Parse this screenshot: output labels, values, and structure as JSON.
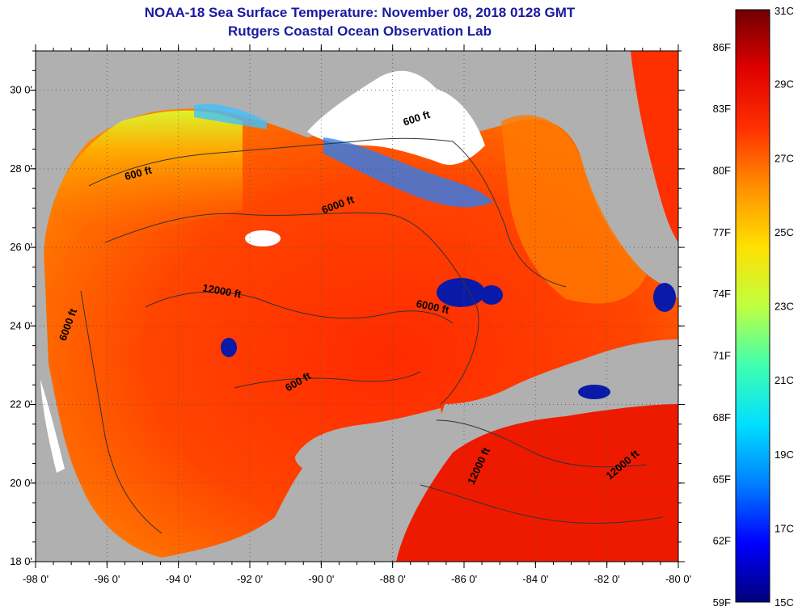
{
  "title": "NOAA-18 Sea Surface Temperature:  November 08, 2018 0128 GMT",
  "subtitle": "Rutgers Coastal Ocean Observation Lab",
  "map": {
    "lon_range": [
      -98,
      -80
    ],
    "lat_range": [
      18,
      31
    ],
    "x_ticks": [
      {
        "value": -98,
        "label": "-98 0'"
      },
      {
        "value": -96,
        "label": "-96 0'"
      },
      {
        "value": -94,
        "label": "-94 0'"
      },
      {
        "value": -92,
        "label": "-92 0'"
      },
      {
        "value": -90,
        "label": "-90 0'"
      },
      {
        "value": -88,
        "label": "-88 0'"
      },
      {
        "value": -86,
        "label": "-86 0'"
      },
      {
        "value": -84,
        "label": "-84 0'"
      },
      {
        "value": -82,
        "label": "-82 0'"
      },
      {
        "value": -80,
        "label": "-80 0'"
      }
    ],
    "y_ticks": [
      {
        "value": 18,
        "label": "18 0'"
      },
      {
        "value": 20,
        "label": "20 0'"
      },
      {
        "value": 22,
        "label": "22 0'"
      },
      {
        "value": 24,
        "label": "24 0'"
      },
      {
        "value": 26,
        "label": "26 0'"
      },
      {
        "value": 28,
        "label": "28 0'"
      },
      {
        "value": 30,
        "label": "30 0'"
      }
    ],
    "depth_labels": [
      {
        "text": "600 ft",
        "lon": -87.3,
        "lat": 29.2
      },
      {
        "text": "600 ft",
        "lon": -95.1,
        "lat": 27.8
      },
      {
        "text": "6000 ft",
        "lon": -89.5,
        "lat": 27.0
      },
      {
        "text": "12000 ft",
        "lon": -92.8,
        "lat": 24.8
      },
      {
        "text": "6000 ft",
        "lon": -97.0,
        "lat": 24.0
      },
      {
        "text": "6000 ft",
        "lon": -86.9,
        "lat": 24.4
      },
      {
        "text": "600 ft",
        "lon": -90.6,
        "lat": 22.5
      },
      {
        "text": "12000 ft",
        "lon": -85.5,
        "lat": 20.4
      },
      {
        "text": "12000 ft",
        "lon": -81.5,
        "lat": 20.4
      }
    ]
  },
  "colorbar": {
    "range_c": [
      15,
      31
    ],
    "celsius_labels": [
      {
        "value": 31,
        "label": "31C"
      },
      {
        "value": 29,
        "label": "29C"
      },
      {
        "value": 27,
        "label": "27C"
      },
      {
        "value": 25,
        "label": "25C"
      },
      {
        "value": 23,
        "label": "23C"
      },
      {
        "value": 21,
        "label": "21C"
      },
      {
        "value": 19,
        "label": "19C"
      },
      {
        "value": 17,
        "label": "17C"
      },
      {
        "value": 15,
        "label": "15C"
      }
    ],
    "fahrenheit_labels": [
      {
        "value": 86,
        "label": "86F"
      },
      {
        "value": 83,
        "label": "83F"
      },
      {
        "value": 80,
        "label": "80F"
      },
      {
        "value": 77,
        "label": "77F"
      },
      {
        "value": 74,
        "label": "74F"
      },
      {
        "value": 71,
        "label": "71F"
      },
      {
        "value": 68,
        "label": "68F"
      },
      {
        "value": 65,
        "label": "65F"
      },
      {
        "value": 62,
        "label": "62F"
      },
      {
        "value": 59,
        "label": "59F"
      }
    ],
    "colors": [
      "#00007a",
      "#0000ff",
      "#0080ff",
      "#00e0ff",
      "#40ffb0",
      "#c0ff40",
      "#ffe000",
      "#ff9000",
      "#ff3000",
      "#e00000",
      "#700000"
    ]
  }
}
